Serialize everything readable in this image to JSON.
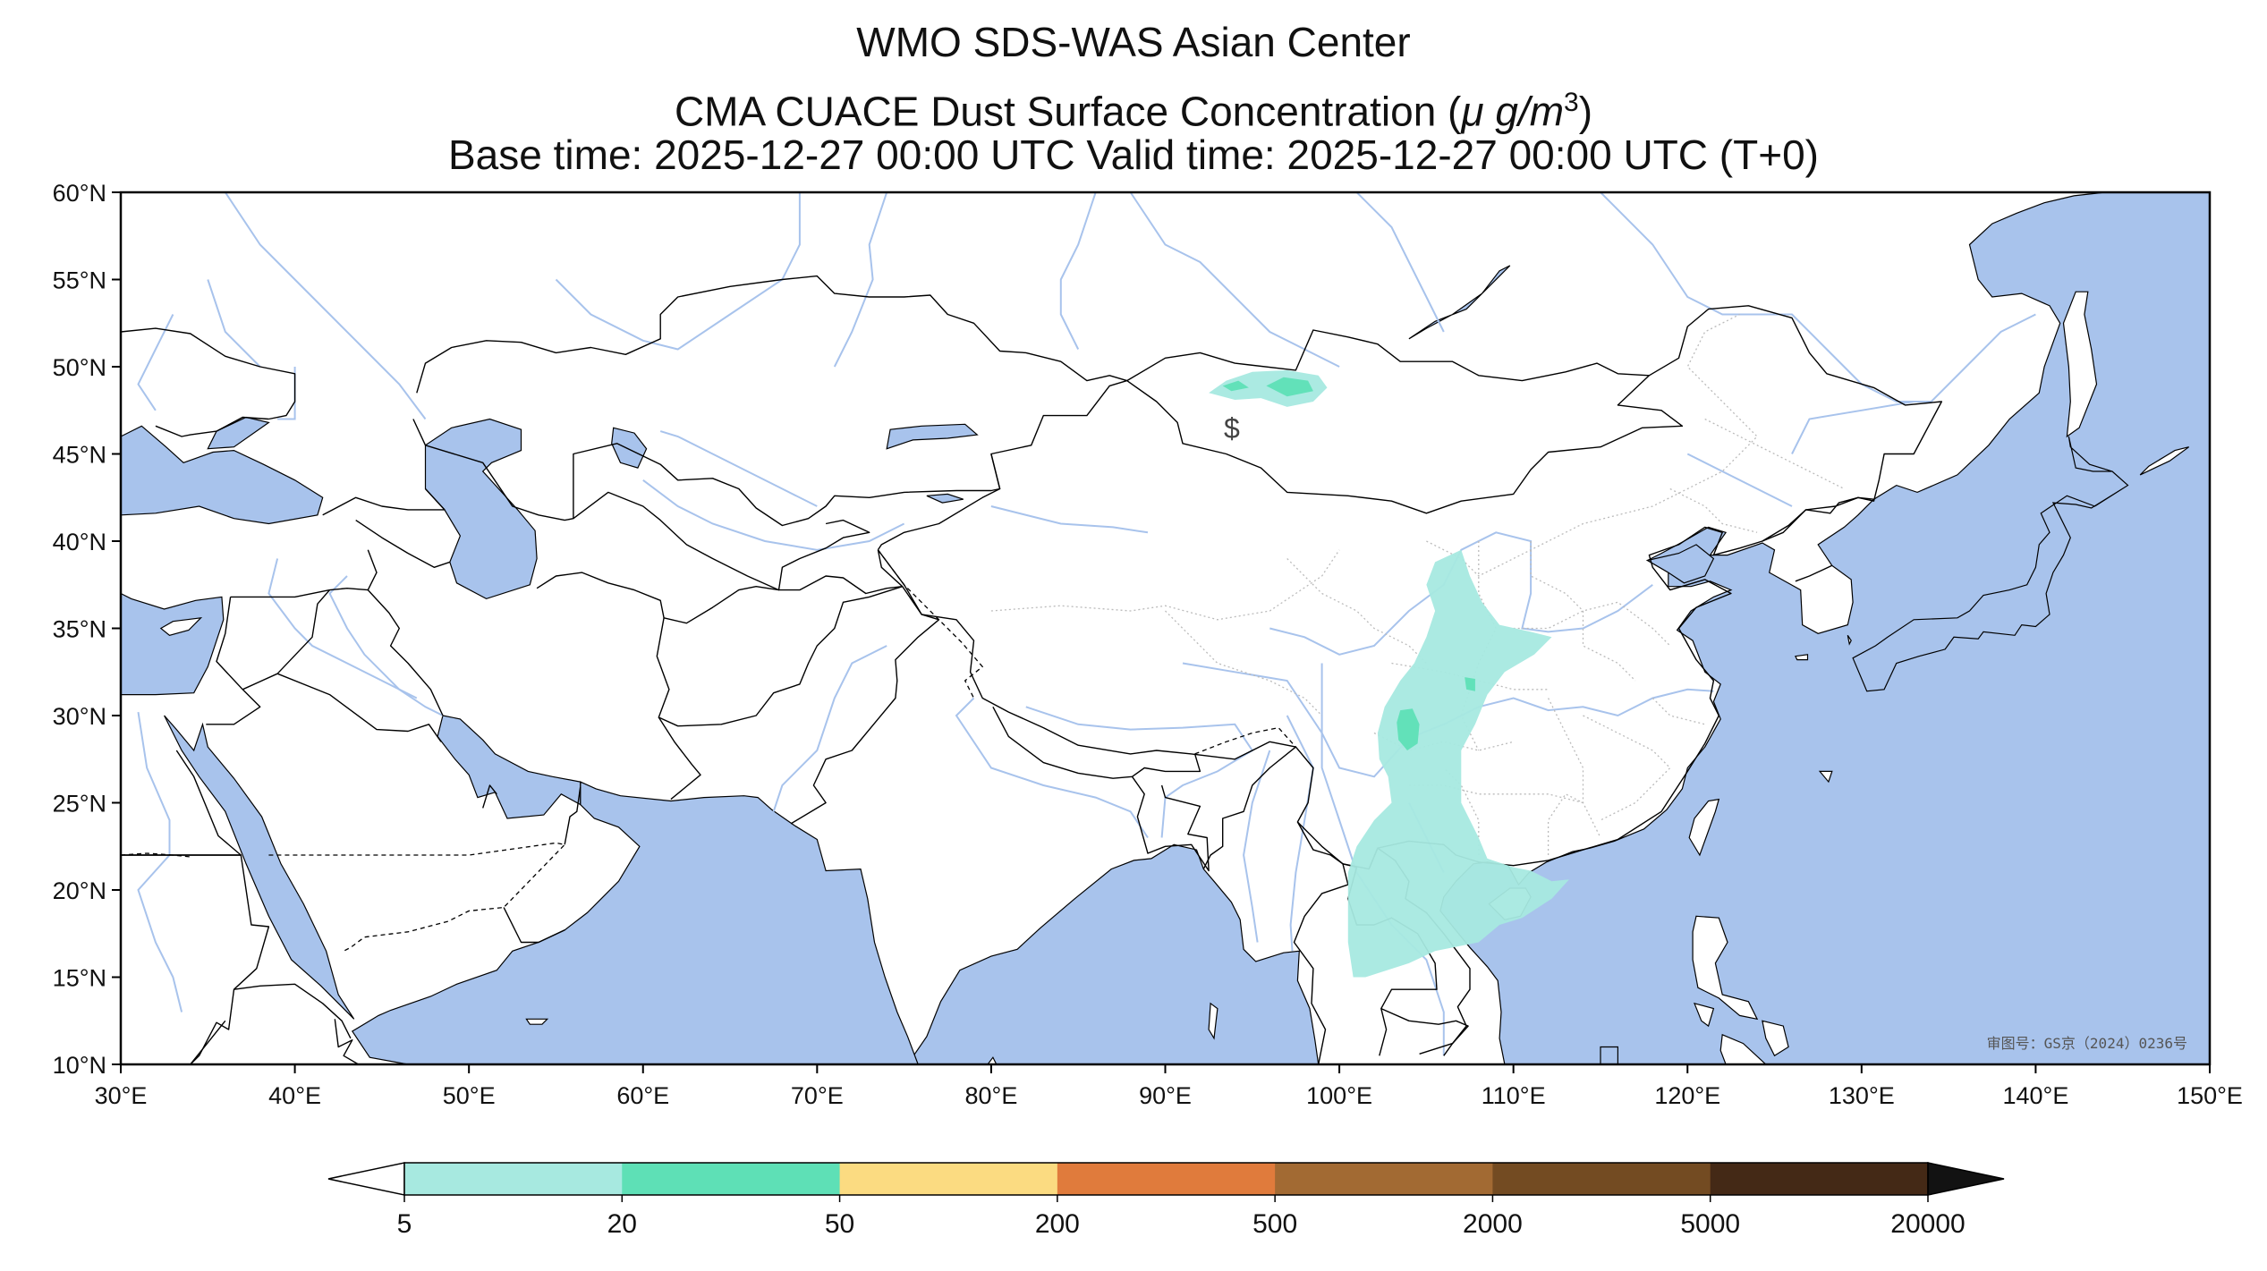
{
  "title": {
    "line1": "WMO SDS-WAS Asian Center",
    "line2_main": "CMA CUACE Dust Surface Concentration (",
    "line2_unit": "μ g/m",
    "line2_sup": "3",
    "line2_end": ")",
    "line3": "Base time: 2025-12-27 00:00 UTC Valid time: 2025-12-27 00:00 UTC (T+0)"
  },
  "map": {
    "lon_range": [
      30,
      150
    ],
    "lat_range": [
      10,
      60
    ],
    "lon_ticks": [
      {
        "value": 30,
        "label": "30°E"
      },
      {
        "value": 40,
        "label": "40°E"
      },
      {
        "value": 50,
        "label": "50°E"
      },
      {
        "value": 60,
        "label": "60°E"
      },
      {
        "value": 70,
        "label": "70°E"
      },
      {
        "value": 80,
        "label": "80°E"
      },
      {
        "value": 90,
        "label": "90°E"
      },
      {
        "value": 100,
        "label": "100°E"
      },
      {
        "value": 110,
        "label": "110°E"
      },
      {
        "value": 120,
        "label": "120°E"
      },
      {
        "value": 130,
        "label": "130°E"
      },
      {
        "value": 140,
        "label": "140°E"
      },
      {
        "value": 150,
        "label": "150°E"
      }
    ],
    "lat_ticks": [
      {
        "value": 60,
        "label": "60°N"
      },
      {
        "value": 55,
        "label": "55°N"
      },
      {
        "value": 50,
        "label": "50°N"
      },
      {
        "value": 45,
        "label": "45°N"
      },
      {
        "value": 40,
        "label": "40°N"
      },
      {
        "value": 35,
        "label": "35°N"
      },
      {
        "value": 30,
        "label": "30°N"
      },
      {
        "value": 25,
        "label": "25°N"
      },
      {
        "value": 20,
        "label": "20°N"
      },
      {
        "value": 15,
        "label": "15°N"
      },
      {
        "value": 10,
        "label": "10°N"
      }
    ],
    "colors": {
      "water": "#a8c3ec",
      "land": "#ffffff",
      "border": "#000000",
      "river": "#a8c3ec",
      "province": "#bbbbbb"
    },
    "dust_regions": [
      {
        "name": "mongolia-west",
        "level": "5-20",
        "points": [
          [
            92.5,
            48.5
          ],
          [
            93.5,
            49.2
          ],
          [
            95,
            49.7
          ],
          [
            97,
            49.8
          ],
          [
            98.8,
            49.5
          ],
          [
            99.3,
            48.8
          ],
          [
            98.5,
            48.0
          ],
          [
            97,
            47.7
          ],
          [
            95.5,
            48.2
          ],
          [
            94,
            48.1
          ]
        ]
      },
      {
        "name": "mongolia-west-core",
        "level": "20-50",
        "points": [
          [
            95.8,
            48.9
          ],
          [
            96.8,
            49.4
          ],
          [
            98.2,
            49.2
          ],
          [
            98.5,
            48.6
          ],
          [
            97,
            48.3
          ]
        ]
      },
      {
        "name": "mongolia-west-core-2",
        "level": "20-50",
        "points": [
          [
            93.3,
            48.9
          ],
          [
            94.2,
            49.2
          ],
          [
            94.8,
            48.8
          ],
          [
            93.8,
            48.6
          ]
        ]
      },
      {
        "name": "china-central-south",
        "level": "5-20",
        "points": [
          [
            105.5,
            38.8
          ],
          [
            107,
            39.5
          ],
          [
            107.5,
            38
          ],
          [
            108.2,
            36.5
          ],
          [
            109.2,
            35.2
          ],
          [
            111,
            34.8
          ],
          [
            112.2,
            34.5
          ],
          [
            111.2,
            33.5
          ],
          [
            109.5,
            32.5
          ],
          [
            108.5,
            31.2
          ],
          [
            107.8,
            29.5
          ],
          [
            107,
            28
          ],
          [
            107,
            25
          ],
          [
            108,
            23
          ],
          [
            108.5,
            21.8
          ],
          [
            110,
            21.3
          ],
          [
            111,
            21.1
          ],
          [
            112.2,
            20.5
          ],
          [
            113.2,
            20.6
          ],
          [
            112.2,
            19.5
          ],
          [
            110.5,
            18.4
          ],
          [
            109.2,
            18
          ],
          [
            108,
            17
          ],
          [
            105.5,
            16.5
          ],
          [
            104,
            15.8
          ],
          [
            101.5,
            15
          ],
          [
            100.8,
            15
          ],
          [
            100.5,
            17
          ],
          [
            100.5,
            19
          ],
          [
            100.5,
            21
          ],
          [
            101,
            22.5
          ],
          [
            102,
            24
          ],
          [
            103,
            25
          ],
          [
            102.8,
            26.5
          ],
          [
            102.3,
            27.5
          ],
          [
            102.2,
            29
          ],
          [
            102.6,
            30.5
          ],
          [
            103.5,
            32
          ],
          [
            104.3,
            33
          ],
          [
            105,
            34.5
          ],
          [
            105.5,
            36
          ],
          [
            105,
            37.5
          ]
        ]
      },
      {
        "name": "sichuan-core",
        "level": "20-50",
        "points": [
          [
            103.5,
            30.3
          ],
          [
            104.2,
            30.4
          ],
          [
            104.6,
            29.5
          ],
          [
            104.5,
            28.4
          ],
          [
            103.9,
            28
          ],
          [
            103.4,
            28.6
          ],
          [
            103.3,
            29.6
          ]
        ]
      },
      {
        "name": "chongqing-core",
        "level": "20-50",
        "points": [
          [
            107.2,
            32.2
          ],
          [
            107.8,
            32.1
          ],
          [
            107.8,
            31.4
          ],
          [
            107.3,
            31.5
          ]
        ]
      }
    ],
    "approval_text": "审图号：GS京（2024）0236号",
    "marker_text": "$"
  },
  "colorbar": {
    "levels": [
      {
        "label": "5",
        "color": "#a7e9e0"
      },
      {
        "label": "20",
        "color": "#5ee0b6"
      },
      {
        "label": "50",
        "color": "#fbdb81"
      },
      {
        "label": "200",
        "color": "#e07b3c"
      },
      {
        "label": "500",
        "color": "#a26a33"
      },
      {
        "label": "2000",
        "color": "#734b22"
      },
      {
        "label": "5000",
        "color": "#442916"
      },
      {
        "label": "20000",
        "color": ""
      }
    ],
    "under_color": "#ffffff",
    "over_color": "#121212"
  }
}
